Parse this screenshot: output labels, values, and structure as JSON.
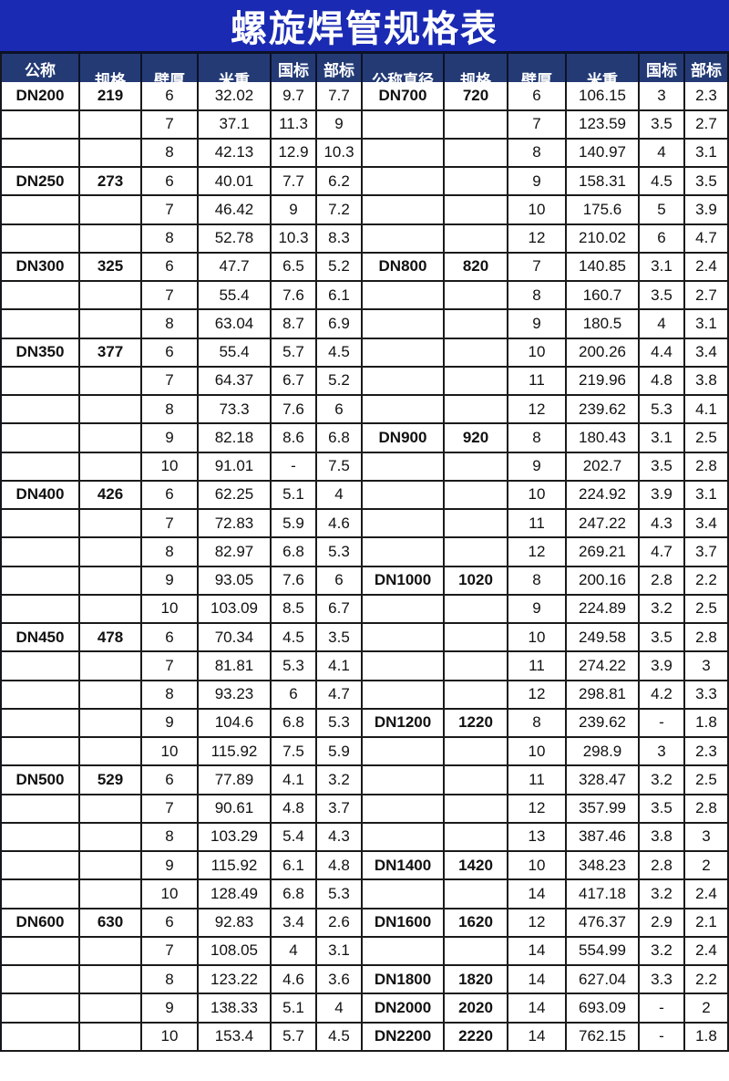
{
  "title": "螺旋焊管规格表",
  "colors": {
    "title_bg": "#1a2ab2",
    "header_bg": "#233a75",
    "border": "#1a1a1a",
    "header_text": "#ffffff",
    "body_text": "#111111"
  },
  "headers": {
    "left": [
      "公称\n直径",
      "规格",
      "壁厚",
      "米重",
      "国标\n水压",
      "部标\n水压"
    ],
    "right": [
      "公称直径",
      "规格",
      "壁厚",
      "米重",
      "国标\n水压",
      "部标\n水压"
    ]
  },
  "column_names": [
    "nominal-diameter",
    "spec",
    "wall-thickness",
    "meter-weight",
    "gb-water-pressure",
    "mb-water-pressure"
  ],
  "rows_left": [
    [
      "DN200",
      "219",
      "6",
      "32.02",
      "9.7",
      "7.7"
    ],
    [
      "",
      "",
      "7",
      "37.1",
      "11.3",
      "9"
    ],
    [
      "",
      "",
      "8",
      "42.13",
      "12.9",
      "10.3"
    ],
    [
      "DN250",
      "273",
      "6",
      "40.01",
      "7.7",
      "6.2"
    ],
    [
      "",
      "",
      "7",
      "46.42",
      "9",
      "7.2"
    ],
    [
      "",
      "",
      "8",
      "52.78",
      "10.3",
      "8.3"
    ],
    [
      "DN300",
      "325",
      "6",
      "47.7",
      "6.5",
      "5.2"
    ],
    [
      "",
      "",
      "7",
      "55.4",
      "7.6",
      "6.1"
    ],
    [
      "",
      "",
      "8",
      "63.04",
      "8.7",
      "6.9"
    ],
    [
      "DN350",
      "377",
      "6",
      "55.4",
      "5.7",
      "4.5"
    ],
    [
      "",
      "",
      "7",
      "64.37",
      "6.7",
      "5.2"
    ],
    [
      "",
      "",
      "8",
      "73.3",
      "7.6",
      "6"
    ],
    [
      "",
      "",
      "9",
      "82.18",
      "8.6",
      "6.8"
    ],
    [
      "",
      "",
      "10",
      "91.01",
      "-",
      "7.5"
    ],
    [
      "DN400",
      "426",
      "6",
      "62.25",
      "5.1",
      "4"
    ],
    [
      "",
      "",
      "7",
      "72.83",
      "5.9",
      "4.6"
    ],
    [
      "",
      "",
      "8",
      "82.97",
      "6.8",
      "5.3"
    ],
    [
      "",
      "",
      "9",
      "93.05",
      "7.6",
      "6"
    ],
    [
      "",
      "",
      "10",
      "103.09",
      "8.5",
      "6.7"
    ],
    [
      "DN450",
      "478",
      "6",
      "70.34",
      "4.5",
      "3.5"
    ],
    [
      "",
      "",
      "7",
      "81.81",
      "5.3",
      "4.1"
    ],
    [
      "",
      "",
      "8",
      "93.23",
      "6",
      "4.7"
    ],
    [
      "",
      "",
      "9",
      "104.6",
      "6.8",
      "5.3"
    ],
    [
      "",
      "",
      "10",
      "115.92",
      "7.5",
      "5.9"
    ],
    [
      "DN500",
      "529",
      "6",
      "77.89",
      "4.1",
      "3.2"
    ],
    [
      "",
      "",
      "7",
      "90.61",
      "4.8",
      "3.7"
    ],
    [
      "",
      "",
      "8",
      "103.29",
      "5.4",
      "4.3"
    ],
    [
      "",
      "",
      "9",
      "115.92",
      "6.1",
      "4.8"
    ],
    [
      "",
      "",
      "10",
      "128.49",
      "6.8",
      "5.3"
    ],
    [
      "DN600",
      "630",
      "6",
      "92.83",
      "3.4",
      "2.6"
    ],
    [
      "",
      "",
      "7",
      "108.05",
      "4",
      "3.1"
    ],
    [
      "",
      "",
      "8",
      "123.22",
      "4.6",
      "3.6"
    ],
    [
      "",
      "",
      "9",
      "138.33",
      "5.1",
      "4"
    ],
    [
      "",
      "",
      "10",
      "153.4",
      "5.7",
      "4.5"
    ]
  ],
  "rows_right": [
    [
      "DN700",
      "720",
      "6",
      "106.15",
      "3",
      "2.3"
    ],
    [
      "",
      "",
      "7",
      "123.59",
      "3.5",
      "2.7"
    ],
    [
      "",
      "",
      "8",
      "140.97",
      "4",
      "3.1"
    ],
    [
      "",
      "",
      "9",
      "158.31",
      "4.5",
      "3.5"
    ],
    [
      "",
      "",
      "10",
      "175.6",
      "5",
      "3.9"
    ],
    [
      "",
      "",
      "12",
      "210.02",
      "6",
      "4.7"
    ],
    [
      "DN800",
      "820",
      "7",
      "140.85",
      "3.1",
      "2.4"
    ],
    [
      "",
      "",
      "8",
      "160.7",
      "3.5",
      "2.7"
    ],
    [
      "",
      "",
      "9",
      "180.5",
      "4",
      "3.1"
    ],
    [
      "",
      "",
      "10",
      "200.26",
      "4.4",
      "3.4"
    ],
    [
      "",
      "",
      "11",
      "219.96",
      "4.8",
      "3.8"
    ],
    [
      "",
      "",
      "12",
      "239.62",
      "5.3",
      "4.1"
    ],
    [
      "DN900",
      "920",
      "8",
      "180.43",
      "3.1",
      "2.5"
    ],
    [
      "",
      "",
      "9",
      "202.7",
      "3.5",
      "2.8"
    ],
    [
      "",
      "",
      "10",
      "224.92",
      "3.9",
      "3.1"
    ],
    [
      "",
      "",
      "11",
      "247.22",
      "4.3",
      "3.4"
    ],
    [
      "",
      "",
      "12",
      "269.21",
      "4.7",
      "3.7"
    ],
    [
      "DN1000",
      "1020",
      "8",
      "200.16",
      "2.8",
      "2.2"
    ],
    [
      "",
      "",
      "9",
      "224.89",
      "3.2",
      "2.5"
    ],
    [
      "",
      "",
      "10",
      "249.58",
      "3.5",
      "2.8"
    ],
    [
      "",
      "",
      "11",
      "274.22",
      "3.9",
      "3"
    ],
    [
      "",
      "",
      "12",
      "298.81",
      "4.2",
      "3.3"
    ],
    [
      "DN1200",
      "1220",
      "8",
      "239.62",
      "-",
      "1.8"
    ],
    [
      "",
      "",
      "10",
      "298.9",
      "3",
      "2.3"
    ],
    [
      "",
      "",
      "11",
      "328.47",
      "3.2",
      "2.5"
    ],
    [
      "",
      "",
      "12",
      "357.99",
      "3.5",
      "2.8"
    ],
    [
      "",
      "",
      "13",
      "387.46",
      "3.8",
      "3"
    ],
    [
      "DN1400",
      "1420",
      "10",
      "348.23",
      "2.8",
      "2"
    ],
    [
      "",
      "",
      "14",
      "417.18",
      "3.2",
      "2.4"
    ],
    [
      "DN1600",
      "1620",
      "12",
      "476.37",
      "2.9",
      "2.1"
    ],
    [
      "",
      "",
      "14",
      "554.99",
      "3.2",
      "2.4"
    ],
    [
      "DN1800",
      "1820",
      "14",
      "627.04",
      "3.3",
      "2.2"
    ],
    [
      "DN2000",
      "2020",
      "14",
      "693.09",
      "-",
      "2"
    ],
    [
      "DN2200",
      "2220",
      "14",
      "762.15",
      "-",
      "1.8"
    ]
  ]
}
